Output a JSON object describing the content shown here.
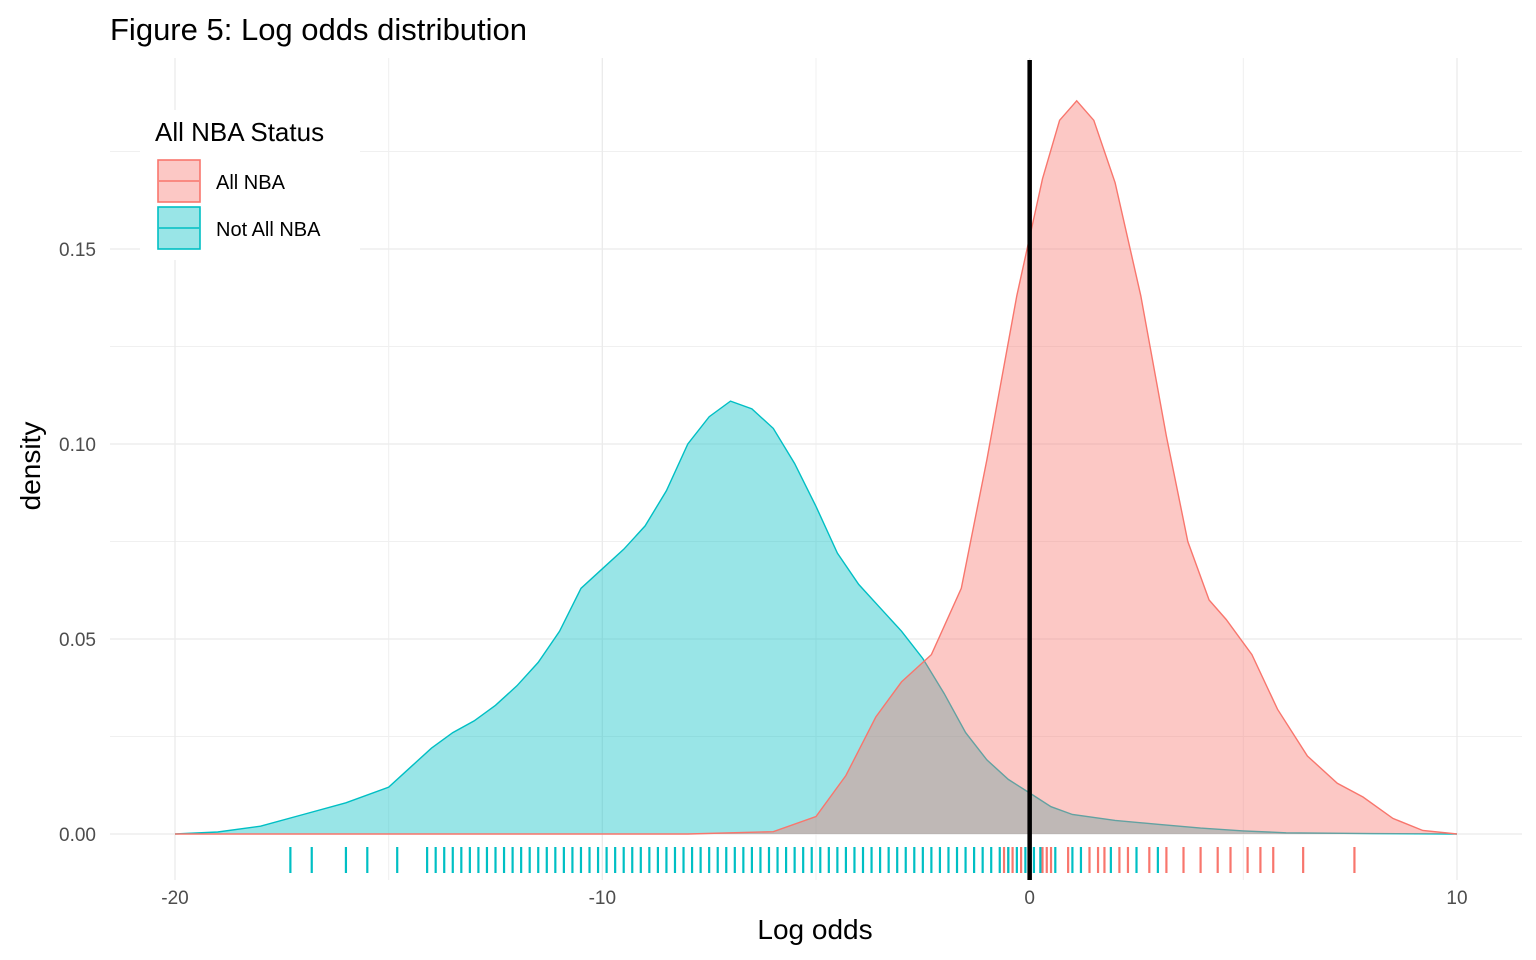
{
  "chart_data": {
    "type": "area",
    "title": "Figure 5: Log odds distribution",
    "xlabel": "Log odds",
    "ylabel": "density",
    "xlim": [
      -20,
      10
    ],
    "ylim": [
      0,
      0.19
    ],
    "x_ticks": [
      -20,
      -10,
      0,
      10
    ],
    "x_tick_labels": [
      "-20",
      "-10",
      "0",
      "10"
    ],
    "y_ticks": [
      0.0,
      0.05,
      0.1,
      0.15
    ],
    "y_tick_labels": [
      "0.00",
      "0.05",
      "0.10",
      "0.15"
    ],
    "grid": true,
    "vline": 0,
    "legend": {
      "title": "All NBA Status",
      "placement": "top-left"
    },
    "series": [
      {
        "name": "All NBA",
        "color": "#F8766D",
        "fill": "#F8766D",
        "points": [
          [
            -20,
            0.0
          ],
          [
            -8,
            0.0
          ],
          [
            -6,
            0.0006
          ],
          [
            -5,
            0.0045
          ],
          [
            -4.3,
            0.015
          ],
          [
            -3.6,
            0.03
          ],
          [
            -3.0,
            0.039
          ],
          [
            -2.3,
            0.046
          ],
          [
            -1.6,
            0.063
          ],
          [
            -1.0,
            0.096
          ],
          [
            -0.3,
            0.138
          ],
          [
            0.3,
            0.168
          ],
          [
            0.7,
            0.183
          ],
          [
            1.1,
            0.188
          ],
          [
            1.5,
            0.183
          ],
          [
            2.0,
            0.167
          ],
          [
            2.6,
            0.138
          ],
          [
            3.2,
            0.102
          ],
          [
            3.7,
            0.075
          ],
          [
            4.2,
            0.06
          ],
          [
            4.6,
            0.055
          ],
          [
            5.2,
            0.046
          ],
          [
            5.8,
            0.032
          ],
          [
            6.5,
            0.02
          ],
          [
            7.2,
            0.013
          ],
          [
            7.8,
            0.0095
          ],
          [
            8.5,
            0.004
          ],
          [
            9.2,
            0.0009
          ],
          [
            10,
            0.0
          ]
        ],
        "rug": [
          -0.6,
          -0.5,
          -0.4,
          -0.2,
          0.3,
          0.4,
          0.5,
          0.9,
          1.4,
          1.6,
          1.75,
          2.1,
          2.3,
          2.8,
          3.2,
          3.6,
          4.0,
          4.4,
          4.7,
          5.1,
          5.4,
          5.7,
          6.4,
          7.6
        ]
      },
      {
        "name": "Not All NBA",
        "color": "#00BFC4",
        "fill": "#00BFC4",
        "points": [
          [
            -20,
            0.0
          ],
          [
            -19,
            0.0005
          ],
          [
            -18,
            0.002
          ],
          [
            -17,
            0.005
          ],
          [
            -16,
            0.008
          ],
          [
            -15,
            0.012
          ],
          [
            -14.5,
            0.017
          ],
          [
            -14,
            0.022
          ],
          [
            -13.5,
            0.026
          ],
          [
            -13,
            0.029
          ],
          [
            -12.5,
            0.033
          ],
          [
            -12,
            0.038
          ],
          [
            -11.5,
            0.044
          ],
          [
            -11,
            0.052
          ],
          [
            -10.5,
            0.063
          ],
          [
            -10,
            0.068
          ],
          [
            -9.5,
            0.073
          ],
          [
            -9,
            0.079
          ],
          [
            -8.5,
            0.088
          ],
          [
            -8,
            0.1
          ],
          [
            -7.5,
            0.107
          ],
          [
            -7.0,
            0.111
          ],
          [
            -6.5,
            0.109
          ],
          [
            -6,
            0.104
          ],
          [
            -5.5,
            0.095
          ],
          [
            -5,
            0.084
          ],
          [
            -4.5,
            0.072
          ],
          [
            -4,
            0.064
          ],
          [
            -3.5,
            0.058
          ],
          [
            -3,
            0.052
          ],
          [
            -2.5,
            0.045
          ],
          [
            -2,
            0.036
          ],
          [
            -1.5,
            0.026
          ],
          [
            -1,
            0.019
          ],
          [
            -0.5,
            0.014
          ],
          [
            0,
            0.0105
          ],
          [
            0.5,
            0.007
          ],
          [
            1,
            0.005
          ],
          [
            2,
            0.0035
          ],
          [
            3,
            0.0025
          ],
          [
            4,
            0.0015
          ],
          [
            5,
            0.0008
          ],
          [
            6,
            0.0003
          ],
          [
            8,
            0.0001
          ],
          [
            10,
            0.0
          ]
        ],
        "rug": [
          -17.3,
          -16.8,
          -16.0,
          -15.5,
          -14.8,
          -14.1,
          -13.9,
          -13.7,
          -13.5,
          -13.3,
          -13.1,
          -12.9,
          -12.7,
          -12.5,
          -12.3,
          -12.1,
          -11.9,
          -11.7,
          -11.5,
          -11.3,
          -11.1,
          -10.9,
          -10.7,
          -10.5,
          -10.3,
          -10.1,
          -9.9,
          -9.7,
          -9.5,
          -9.3,
          -9.1,
          -8.9,
          -8.7,
          -8.5,
          -8.3,
          -8.1,
          -7.9,
          -7.7,
          -7.5,
          -7.3,
          -7.1,
          -6.9,
          -6.7,
          -6.5,
          -6.3,
          -6.1,
          -5.9,
          -5.7,
          -5.5,
          -5.3,
          -5.1,
          -4.9,
          -4.7,
          -4.5,
          -4.3,
          -4.1,
          -3.9,
          -3.7,
          -3.5,
          -3.3,
          -3.1,
          -2.9,
          -2.7,
          -2.5,
          -2.3,
          -2.1,
          -1.9,
          -1.7,
          -1.5,
          -1.3,
          -1.1,
          -0.9,
          -0.7,
          -0.5,
          -0.3,
          -0.1,
          0.1,
          0.25,
          0.6,
          1.0,
          1.2,
          1.9,
          2.5,
          3.0
        ]
      }
    ]
  }
}
